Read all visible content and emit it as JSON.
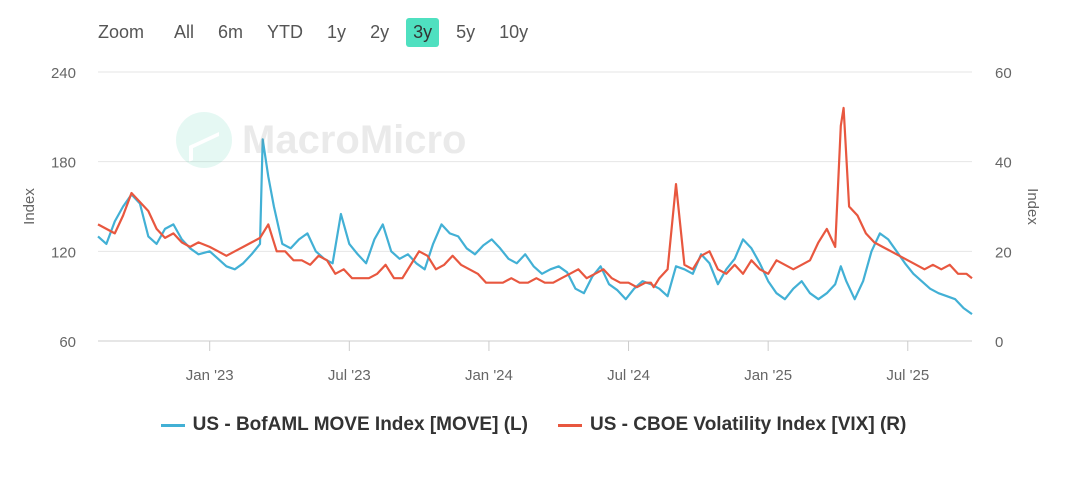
{
  "toolbar": {
    "zoom_label": "Zoom",
    "buttons": [
      "All",
      "6m",
      "YTD",
      "1y",
      "2y",
      "3y",
      "5y",
      "10y"
    ],
    "active": "3y"
  },
  "watermark": "MacroMicro",
  "colors": {
    "move": "#42b0d5",
    "vix": "#e8573f",
    "active_button": "#4fe0c0",
    "grid": "#e6e6e6"
  },
  "legend": {
    "move": "US - BofAML MOVE Index [MOVE] (L)",
    "vix": "US - CBOE Volatility Index [VIX] (R)"
  },
  "chart_data": {
    "type": "line",
    "title": "",
    "x_range": [
      2022.6,
      2025.73
    ],
    "x_ticks": [
      {
        "x": 2023.0,
        "label": "Jan '23"
      },
      {
        "x": 2023.5,
        "label": "Jul '23"
      },
      {
        "x": 2024.0,
        "label": "Jan '24"
      },
      {
        "x": 2024.5,
        "label": "Jul '24"
      },
      {
        "x": 2025.0,
        "label": "Jan '25"
      },
      {
        "x": 2025.5,
        "label": "Jul '25"
      }
    ],
    "y_left": {
      "label": "Index",
      "range": [
        60,
        240
      ],
      "ticks": [
        60,
        120,
        180,
        240
      ]
    },
    "y_right": {
      "label": "Index",
      "range": [
        0,
        60
      ],
      "ticks": [
        0,
        20,
        40,
        60
      ]
    },
    "series": [
      {
        "name": "US - BofAML MOVE Index [MOVE] (L)",
        "axis": "left",
        "color": "#42b0d5",
        "x": [
          2022.6,
          2022.63,
          2022.66,
          2022.69,
          2022.72,
          2022.75,
          2022.78,
          2022.81,
          2022.84,
          2022.87,
          2022.9,
          2022.93,
          2022.96,
          2023.0,
          2023.03,
          2023.06,
          2023.09,
          2023.12,
          2023.15,
          2023.18,
          2023.19,
          2023.21,
          2023.23,
          2023.26,
          2023.29,
          2023.32,
          2023.35,
          2023.38,
          2023.41,
          2023.44,
          2023.47,
          2023.5,
          2023.53,
          2023.56,
          2023.59,
          2023.62,
          2023.65,
          2023.68,
          2023.71,
          2023.74,
          2023.77,
          2023.8,
          2023.83,
          2023.86,
          2023.89,
          2023.92,
          2023.95,
          2023.98,
          2024.01,
          2024.04,
          2024.07,
          2024.1,
          2024.13,
          2024.16,
          2024.19,
          2024.22,
          2024.25,
          2024.28,
          2024.31,
          2024.34,
          2024.37,
          2024.4,
          2024.43,
          2024.46,
          2024.49,
          2024.52,
          2024.55,
          2024.58,
          2024.61,
          2024.64,
          2024.67,
          2024.7,
          2024.73,
          2024.76,
          2024.79,
          2024.82,
          2024.85,
          2024.88,
          2024.91,
          2024.94,
          2024.97,
          2025.0,
          2025.03,
          2025.06,
          2025.09,
          2025.12,
          2025.15,
          2025.18,
          2025.21,
          2025.24,
          2025.26,
          2025.28,
          2025.31,
          2025.34,
          2025.37,
          2025.4,
          2025.43,
          2025.46,
          2025.49,
          2025.52,
          2025.55,
          2025.58,
          2025.61,
          2025.64,
          2025.67,
          2025.7,
          2025.73
        ],
        "y": [
          130,
          125,
          140,
          150,
          158,
          152,
          130,
          125,
          135,
          138,
          128,
          122,
          118,
          120,
          115,
          110,
          108,
          112,
          118,
          125,
          195,
          170,
          150,
          125,
          122,
          128,
          132,
          120,
          115,
          112,
          145,
          125,
          118,
          112,
          128,
          138,
          120,
          115,
          118,
          112,
          108,
          125,
          138,
          132,
          130,
          122,
          118,
          124,
          128,
          122,
          115,
          112,
          118,
          110,
          105,
          108,
          110,
          106,
          95,
          92,
          103,
          110,
          98,
          94,
          88,
          95,
          100,
          98,
          95,
          90,
          110,
          108,
          105,
          118,
          112,
          98,
          108,
          115,
          128,
          122,
          112,
          100,
          92,
          88,
          95,
          100,
          92,
          88,
          92,
          98,
          110,
          100,
          88,
          100,
          120,
          132,
          128,
          120,
          112,
          105,
          100,
          95,
          92,
          90,
          88,
          82,
          78
        ]
      },
      {
        "name": "US - CBOE Volatility Index [VIX] (R)",
        "axis": "right",
        "color": "#e8573f",
        "x": [
          2022.6,
          2022.63,
          2022.66,
          2022.69,
          2022.72,
          2022.75,
          2022.78,
          2022.81,
          2022.84,
          2022.87,
          2022.9,
          2022.93,
          2022.96,
          2023.0,
          2023.03,
          2023.06,
          2023.09,
          2023.12,
          2023.15,
          2023.18,
          2023.21,
          2023.24,
          2023.27,
          2023.3,
          2023.33,
          2023.36,
          2023.39,
          2023.42,
          2023.45,
          2023.48,
          2023.51,
          2023.54,
          2023.57,
          2023.6,
          2023.63,
          2023.66,
          2023.69,
          2023.72,
          2023.75,
          2023.78,
          2023.81,
          2023.84,
          2023.87,
          2023.9,
          2023.93,
          2023.96,
          2023.99,
          2024.02,
          2024.05,
          2024.08,
          2024.11,
          2024.14,
          2024.17,
          2024.2,
          2024.23,
          2024.26,
          2024.29,
          2024.32,
          2024.35,
          2024.38,
          2024.41,
          2024.44,
          2024.47,
          2024.5,
          2024.53,
          2024.56,
          2024.58,
          2024.59,
          2024.61,
          2024.64,
          2024.67,
          2024.7,
          2024.73,
          2024.76,
          2024.79,
          2024.82,
          2024.85,
          2024.88,
          2024.91,
          2024.94,
          2024.97,
          2025.0,
          2025.03,
          2025.06,
          2025.09,
          2025.12,
          2025.15,
          2025.18,
          2025.21,
          2025.24,
          2025.26,
          2025.27,
          2025.29,
          2025.32,
          2025.35,
          2025.38,
          2025.41,
          2025.44,
          2025.47,
          2025.5,
          2025.53,
          2025.56,
          2025.59,
          2025.62,
          2025.65,
          2025.68,
          2025.71,
          2025.73
        ],
        "y": [
          26,
          25,
          24,
          28,
          33,
          31,
          29,
          25,
          23,
          24,
          22,
          21,
          22,
          21,
          20,
          19,
          20,
          21,
          22,
          23,
          26,
          20,
          20,
          18,
          18,
          17,
          19,
          18,
          15,
          16,
          14,
          14,
          14,
          15,
          17,
          14,
          14,
          17,
          20,
          19,
          16,
          17,
          19,
          17,
          16,
          15,
          13,
          13,
          13,
          14,
          13,
          13,
          14,
          13,
          13,
          14,
          15,
          16,
          14,
          15,
          16,
          14,
          13,
          13,
          12,
          13,
          13,
          12,
          14,
          16,
          35,
          17,
          16,
          19,
          20,
          16,
          15,
          17,
          15,
          18,
          16,
          15,
          18,
          17,
          16,
          17,
          18,
          22,
          25,
          21,
          48,
          52,
          30,
          28,
          24,
          22,
          21,
          20,
          19,
          18,
          17,
          16,
          17,
          16,
          17,
          15,
          15,
          14
        ]
      }
    ]
  }
}
